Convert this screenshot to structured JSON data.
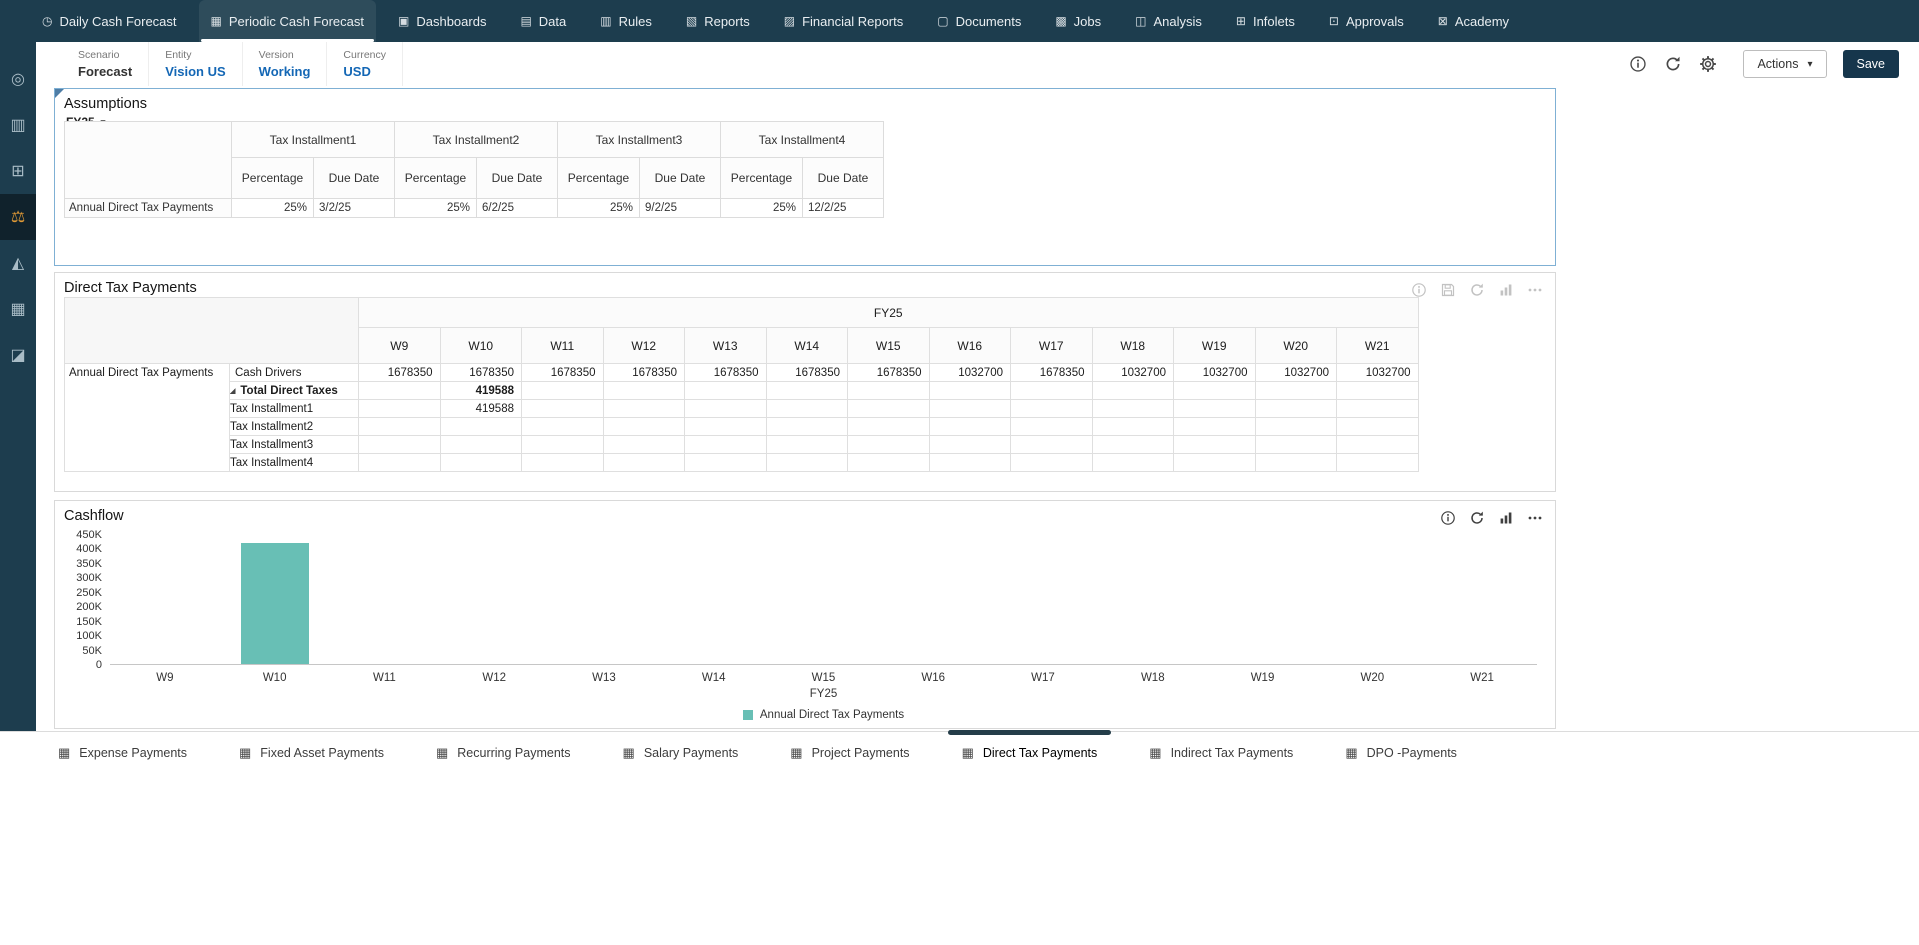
{
  "colors": {
    "topnav_bg": "#1d3d4e",
    "sidebar_active_icon": "#e09a36",
    "link_blue": "#1467b5",
    "bar_teal": "#68bfb5",
    "save_button_bg": "#16364c",
    "tab_indicator": "#243d49",
    "selected_panel_border": "#7fb0d4"
  },
  "topnav": {
    "items": [
      {
        "label": "Daily Cash Forecast",
        "icon": "clock-icon",
        "glyph": "◷",
        "active": false
      },
      {
        "label": "Periodic Cash Forecast",
        "icon": "calendar-icon",
        "glyph": "▦",
        "active": true
      },
      {
        "label": "Dashboards",
        "icon": "dashboards-icon",
        "glyph": "▣",
        "active": false
      },
      {
        "label": "Data",
        "icon": "data-icon",
        "glyph": "▤",
        "active": false
      },
      {
        "label": "Rules",
        "icon": "rules-icon",
        "glyph": "▥",
        "active": false
      },
      {
        "label": "Reports",
        "icon": "reports-icon",
        "glyph": "▧",
        "active": false
      },
      {
        "label": "Financial Reports",
        "icon": "financial-reports-icon",
        "glyph": "▨",
        "active": false
      },
      {
        "label": "Documents",
        "icon": "documents-icon",
        "glyph": "▢",
        "active": false
      },
      {
        "label": "Jobs",
        "icon": "jobs-icon",
        "glyph": "▩",
        "active": false
      },
      {
        "label": "Analysis",
        "icon": "analysis-icon",
        "glyph": "◫",
        "active": false
      },
      {
        "label": "Infolets",
        "icon": "infolets-icon",
        "glyph": "⊞",
        "active": false
      },
      {
        "label": "Approvals",
        "icon": "approvals-icon",
        "glyph": "⊡",
        "active": false
      },
      {
        "label": "Academy",
        "icon": "academy-icon",
        "glyph": "⊠",
        "active": false
      }
    ]
  },
  "sidebar": {
    "items": [
      {
        "name": "cash-forecast-icon",
        "glyph": "◎",
        "active": false
      },
      {
        "name": "bar-chart-icon",
        "glyph": "▥",
        "active": false
      },
      {
        "name": "data-cube-icon",
        "glyph": "⊞",
        "active": false
      },
      {
        "name": "tax-payments-icon",
        "glyph": "⚖",
        "active": true
      },
      {
        "name": "trend-chart-icon",
        "glyph": "◭",
        "active": false
      },
      {
        "name": "grid-icon",
        "glyph": "▦",
        "active": false
      },
      {
        "name": "edit-form-icon",
        "glyph": "◪",
        "active": false
      }
    ]
  },
  "pov": {
    "fields": [
      {
        "label": "Scenario",
        "value": "Forecast",
        "link": false
      },
      {
        "label": "Entity",
        "value": "Vision US",
        "link": true
      },
      {
        "label": "Version",
        "value": "Working",
        "link": true
      },
      {
        "label": "Currency",
        "value": "USD",
        "link": true
      }
    ],
    "toolbar_icons": [
      "info-icon",
      "refresh-icon",
      "settings-icon"
    ],
    "actions_label": "Actions",
    "save_label": "Save"
  },
  "assumptions": {
    "title": "Assumptions",
    "period": "FY25",
    "column_groups": [
      "Tax Installment1",
      "Tax Installment2",
      "Tax Installment3",
      "Tax Installment4"
    ],
    "sub_columns": [
      "Percentage",
      "Due Date"
    ],
    "rows": [
      {
        "label": "Annual Direct Tax Payments",
        "cells": [
          {
            "percentage": "25%",
            "due_date": "3/2/25"
          },
          {
            "percentage": "25%",
            "due_date": "6/2/25"
          },
          {
            "percentage": "25%",
            "due_date": "9/2/25"
          },
          {
            "percentage": "25%",
            "due_date": "12/2/25"
          }
        ]
      }
    ]
  },
  "direct_tax_payments": {
    "title": "Direct Tax Payments",
    "year": "FY25",
    "toolbar_icons": [
      "info-icon",
      "save-icon",
      "refresh-icon",
      "chart-icon",
      "more-icon"
    ],
    "week_columns": [
      "W9",
      "W10",
      "W11",
      "W12",
      "W13",
      "W14",
      "W15",
      "W16",
      "W17",
      "W18",
      "W19",
      "W20",
      "W21"
    ],
    "rows": [
      {
        "row_label": "Annual Direct Tax Payments",
        "member": "Cash Drivers",
        "indent": 0,
        "bold": false,
        "expand": false,
        "values": [
          "1678350",
          "1678350",
          "1678350",
          "1678350",
          "1678350",
          "1678350",
          "1678350",
          "1032700",
          "1678350",
          "1032700",
          "1032700",
          "1032700",
          "1032700"
        ]
      },
      {
        "row_label": "",
        "member": "Total Direct Taxes",
        "indent": 1,
        "bold": true,
        "expand": true,
        "values": [
          "",
          "419588",
          "",
          "",
          "",
          "",
          "",
          "",
          "",
          "",
          "",
          "",
          ""
        ]
      },
      {
        "row_label": "",
        "member": "Tax Installment1",
        "indent": 2,
        "bold": false,
        "expand": false,
        "values": [
          "",
          "419588",
          "",
          "",
          "",
          "",
          "",
          "",
          "",
          "",
          "",
          "",
          ""
        ]
      },
      {
        "row_label": "",
        "member": "Tax Installment2",
        "indent": 2,
        "bold": false,
        "expand": false,
        "values": [
          "",
          "",
          "",
          "",
          "",
          "",
          "",
          "",
          "",
          "",
          "",
          "",
          ""
        ]
      },
      {
        "row_label": "",
        "member": "Tax Installment3",
        "indent": 2,
        "bold": false,
        "expand": false,
        "values": [
          "",
          "",
          "",
          "",
          "",
          "",
          "",
          "",
          "",
          "",
          "",
          "",
          ""
        ]
      },
      {
        "row_label": "",
        "member": "Tax Installment4",
        "indent": 2,
        "bold": false,
        "expand": false,
        "values": [
          "",
          "",
          "",
          "",
          "",
          "",
          "",
          "",
          "",
          "",
          "",
          "",
          ""
        ]
      }
    ]
  },
  "cashflow": {
    "title": "Cashflow",
    "toolbar_icons": [
      "info-icon",
      "refresh-icon",
      "chart-icon",
      "more-icon"
    ],
    "chart_data": {
      "type": "bar",
      "categories": [
        "W9",
        "W10",
        "W11",
        "W12",
        "W13",
        "W14",
        "W15",
        "W16",
        "W17",
        "W18",
        "W19",
        "W20",
        "W21"
      ],
      "values": [
        0,
        419588,
        0,
        0,
        0,
        0,
        0,
        0,
        0,
        0,
        0,
        0,
        0
      ],
      "title": "Cashflow",
      "xlabel": "FY25",
      "ylabel": "",
      "ylim": [
        0,
        450000
      ],
      "ytick_step": 50000,
      "ytick_labels": [
        "0",
        "50K",
        "100K",
        "150K",
        "200K",
        "250K",
        "300K",
        "350K",
        "400K",
        "450K"
      ],
      "grid": false,
      "bar_color": "#68bfb5",
      "legend_position": "bottom",
      "legend": [
        {
          "label": "Annual Direct Tax Payments",
          "color": "#68bfb5"
        }
      ]
    }
  },
  "bottom_tabs": {
    "items": [
      {
        "label": "Expense Payments",
        "active": false
      },
      {
        "label": "Fixed Asset Payments",
        "active": false
      },
      {
        "label": "Recurring Payments",
        "active": false
      },
      {
        "label": "Salary Payments",
        "active": false
      },
      {
        "label": "Project Payments",
        "active": false
      },
      {
        "label": "Direct Tax Payments",
        "active": true
      },
      {
        "label": "Indirect Tax Payments",
        "active": false
      },
      {
        "label": "DPO -Payments",
        "active": false
      }
    ]
  }
}
